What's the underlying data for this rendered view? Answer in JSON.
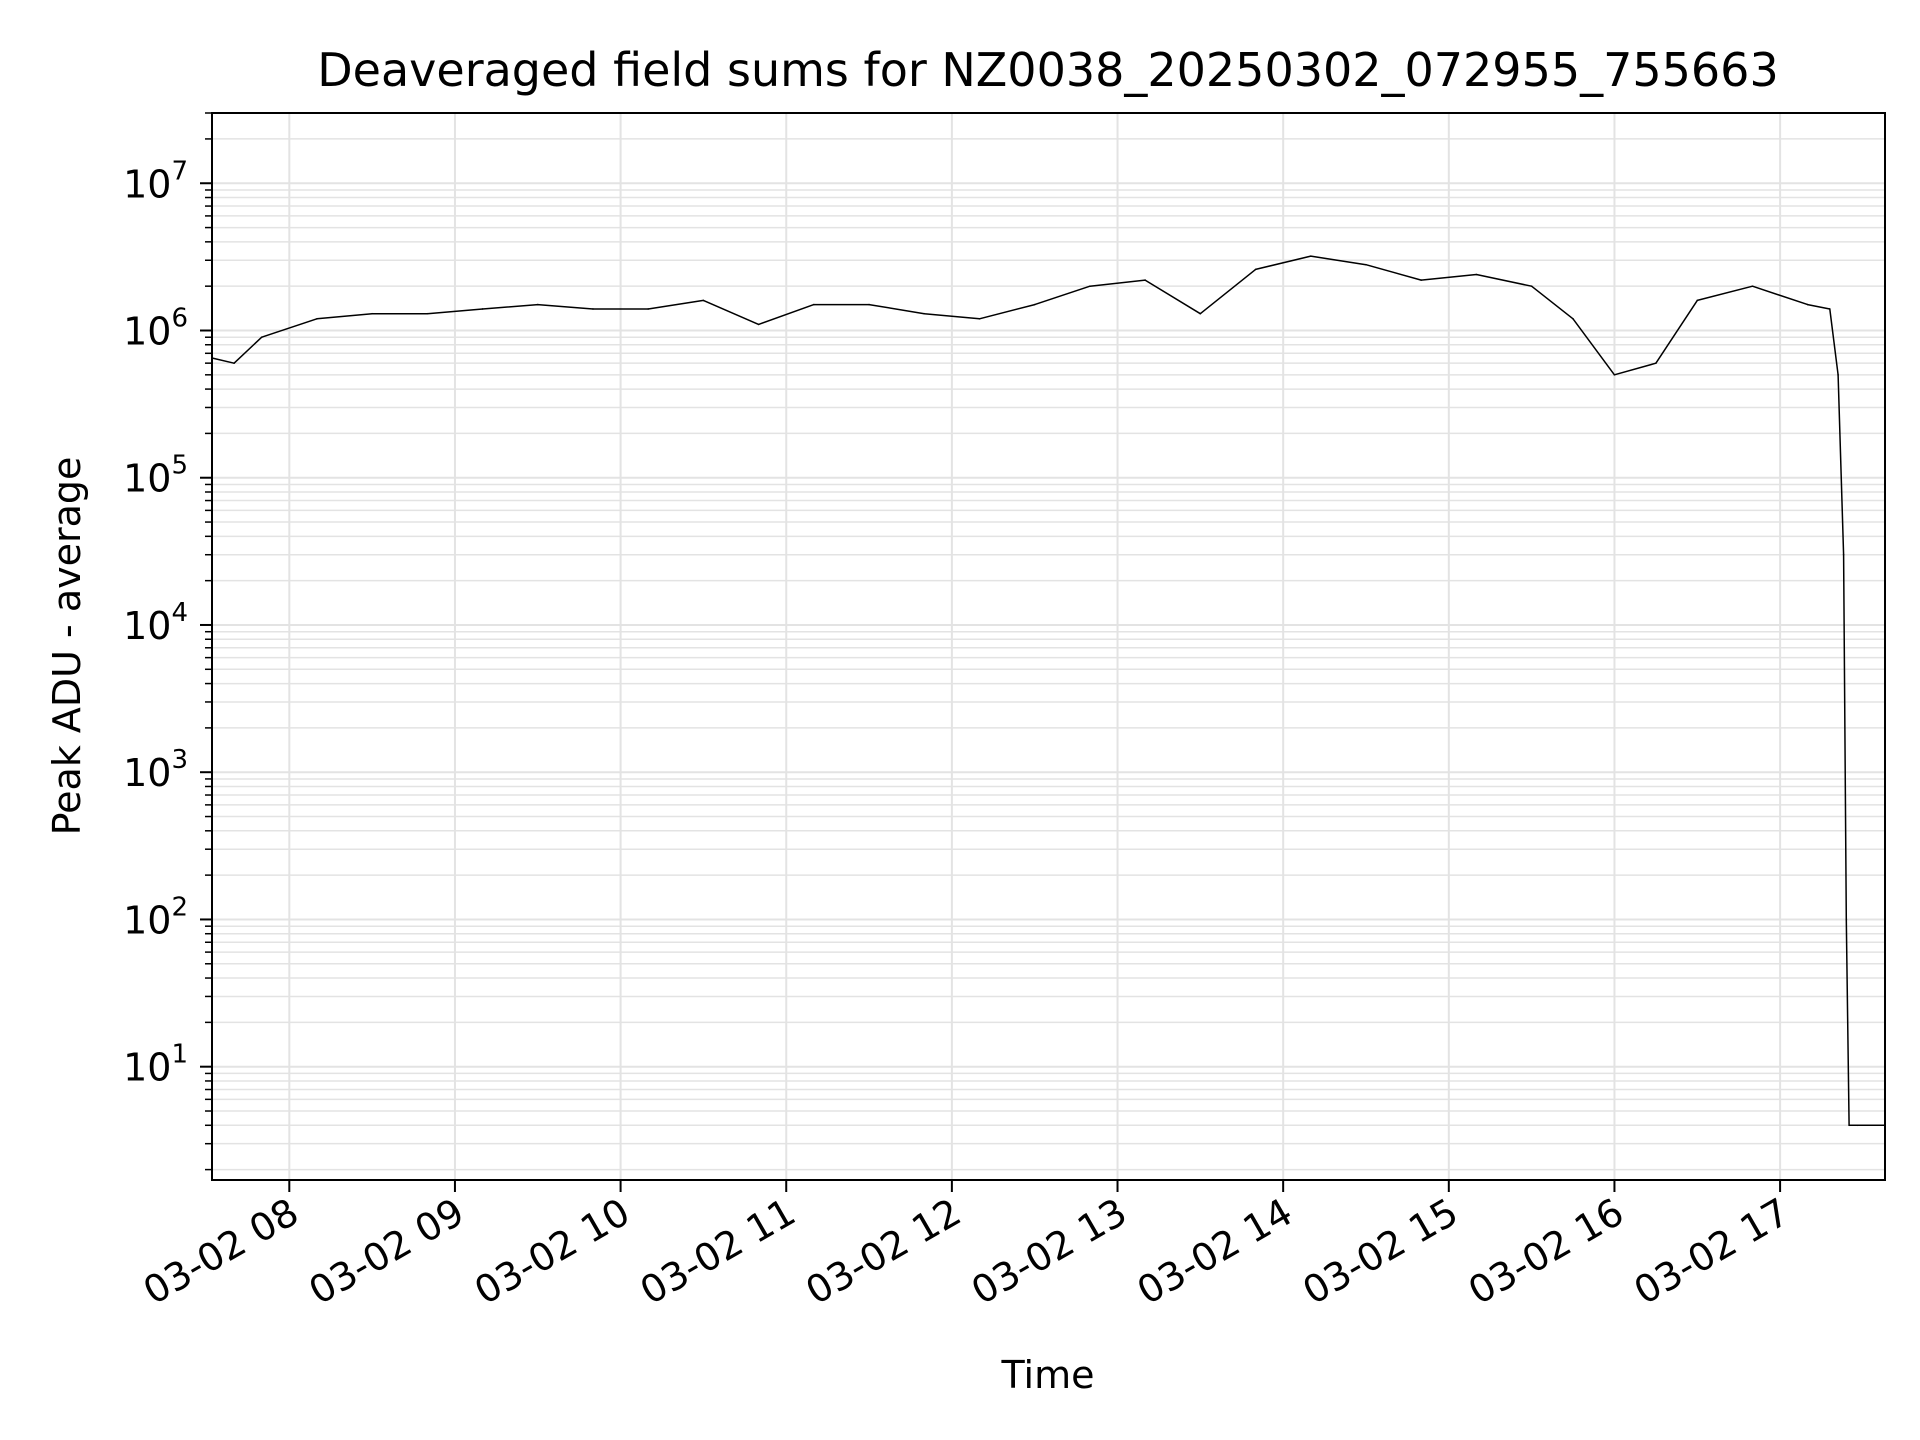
{
  "chart_data": {
    "type": "line",
    "title": "Deaveraged field sums for NZ0038_20250302_072955_755663",
    "xlabel": "Time",
    "ylabel": "Peak ADU - average",
    "x_type": "datetime",
    "xlim": [
      "2025-03-02T07:32",
      "2025-03-02T17:38"
    ],
    "x_ticks": [
      {
        "label": "03-02 08",
        "value": "2025-03-02T08:00"
      },
      {
        "label": "03-02 09",
        "value": "2025-03-02T09:00"
      },
      {
        "label": "03-02 10",
        "value": "2025-03-02T10:00"
      },
      {
        "label": "03-02 11",
        "value": "2025-03-02T11:00"
      },
      {
        "label": "03-02 12",
        "value": "2025-03-02T12:00"
      },
      {
        "label": "03-02 13",
        "value": "2025-03-02T13:00"
      },
      {
        "label": "03-02 14",
        "value": "2025-03-02T14:00"
      },
      {
        "label": "03-02 15",
        "value": "2025-03-02T15:00"
      },
      {
        "label": "03-02 16",
        "value": "2025-03-02T16:00"
      },
      {
        "label": "03-02 17",
        "value": "2025-03-02T17:00"
      }
    ],
    "y_scale": "log",
    "ylim": [
      1.7,
      30000000
    ],
    "y_ticks": [
      {
        "base": "10",
        "exp": "1",
        "value": 10
      },
      {
        "base": "10",
        "exp": "2",
        "value": 100
      },
      {
        "base": "10",
        "exp": "3",
        "value": 1000
      },
      {
        "base": "10",
        "exp": "4",
        "value": 10000
      },
      {
        "base": "10",
        "exp": "5",
        "value": 100000
      },
      {
        "base": "10",
        "exp": "6",
        "value": 1000000
      },
      {
        "base": "10",
        "exp": "7",
        "value": 10000000
      }
    ],
    "grid": true,
    "line_color": "#000000",
    "grid_color": "#e3e3e3",
    "series": [
      {
        "x": [
          "2025-03-02T07:32",
          "2025-03-02T07:40",
          "2025-03-02T07:50",
          "2025-03-02T08:10",
          "2025-03-02T08:30",
          "2025-03-02T08:50",
          "2025-03-02T09:10",
          "2025-03-02T09:30",
          "2025-03-02T09:50",
          "2025-03-02T10:10",
          "2025-03-02T10:30",
          "2025-03-02T10:50",
          "2025-03-02T11:10",
          "2025-03-02T11:30",
          "2025-03-02T11:50",
          "2025-03-02T12:10",
          "2025-03-02T12:30",
          "2025-03-02T12:50",
          "2025-03-02T13:10",
          "2025-03-02T13:30",
          "2025-03-02T13:50",
          "2025-03-02T14:10",
          "2025-03-02T14:30",
          "2025-03-02T14:50",
          "2025-03-02T15:10",
          "2025-03-02T15:30",
          "2025-03-02T15:45",
          "2025-03-02T16:00",
          "2025-03-02T16:15",
          "2025-03-02T16:30",
          "2025-03-02T16:50",
          "2025-03-02T17:10",
          "2025-03-02T17:18",
          "2025-03-02T17:21",
          "2025-03-02T17:23",
          "2025-03-02T17:24",
          "2025-03-02T17:25",
          "2025-03-02T17:28",
          "2025-03-02T17:38"
        ],
        "y": [
          650000,
          600000,
          900000,
          1200000,
          1300000,
          1300000,
          1400000,
          1500000,
          1400000,
          1400000,
          1600000,
          1100000,
          1500000,
          1500000,
          1300000,
          1200000,
          1500000,
          2000000,
          2200000,
          1300000,
          2600000,
          3200000,
          2800000,
          2200000,
          2400000,
          2000000,
          1200000,
          500000,
          600000,
          1600000,
          2000000,
          1500000,
          1400000,
          500000,
          30000,
          100,
          4,
          4,
          4
        ]
      }
    ]
  }
}
